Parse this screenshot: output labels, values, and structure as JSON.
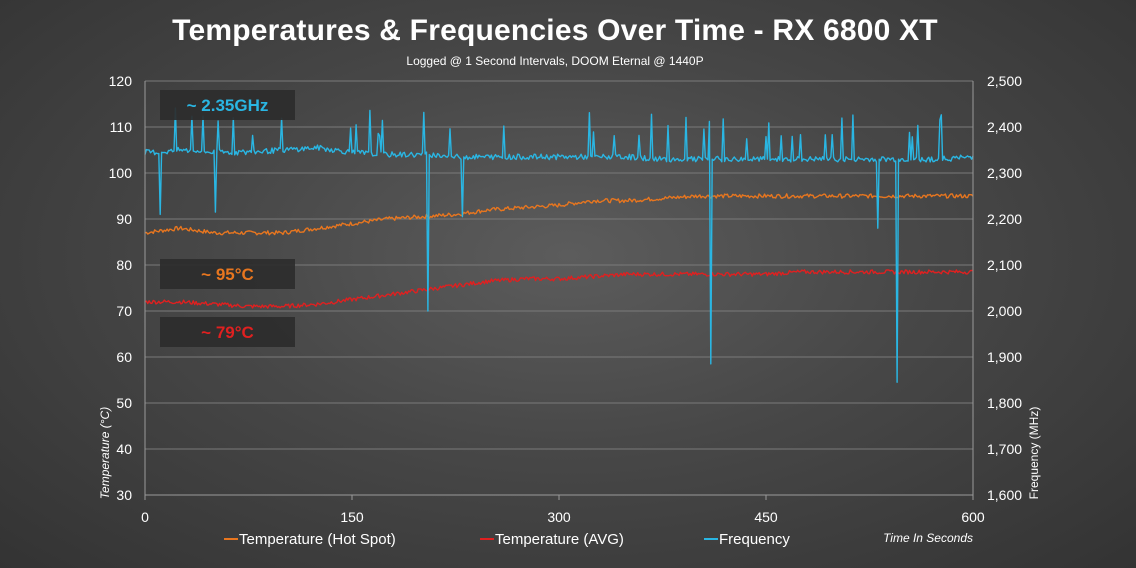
{
  "chart_data": {
    "type": "line",
    "title": "Temperatures & Frequencies Over Time - RX 6800 XT",
    "subtitle": "Logged @ 1 Second Intervals, DOOM Eternal @ 1440P",
    "xlabel": "Time In Seconds",
    "ylabel_left": "Temperature (°C)",
    "ylabel_right": "Frequency  (MHz)",
    "xlim": [
      0,
      600
    ],
    "ylim_left": [
      30,
      120
    ],
    "ylim_right": [
      1600,
      2500
    ],
    "x_ticks": [
      "0",
      "150",
      "300",
      "450",
      "600"
    ],
    "y_left_ticks": [
      "30",
      "40",
      "50",
      "60",
      "70",
      "80",
      "90",
      "100",
      "110",
      "120"
    ],
    "y_right_ticks": [
      "1,600",
      "1,700",
      "1,800",
      "1,900",
      "2,000",
      "2,100",
      "2,200",
      "2,300",
      "2,400",
      "2,500"
    ],
    "grid": true,
    "legend_position": "bottom",
    "series": [
      {
        "name": "Temperature (Hot Spot)",
        "axis": "left",
        "color": "#e8761f",
        "x": [
          0,
          25,
          50,
          75,
          100,
          125,
          150,
          175,
          200,
          225,
          250,
          275,
          300,
          325,
          350,
          375,
          400,
          425,
          450,
          475,
          500,
          525,
          550,
          575,
          600
        ],
        "values": [
          87,
          88,
          87,
          87,
          87,
          88,
          89,
          90,
          90.5,
          91,
          92,
          92.5,
          93,
          94,
          94,
          94.5,
          95,
          95,
          95,
          95,
          95,
          95,
          95,
          95,
          95
        ]
      },
      {
        "name": "Temperature (AVG)",
        "axis": "left",
        "color": "#e02020",
        "x": [
          0,
          25,
          50,
          75,
          100,
          125,
          150,
          175,
          200,
          225,
          250,
          275,
          300,
          325,
          350,
          375,
          400,
          425,
          450,
          475,
          500,
          525,
          550,
          575,
          600
        ],
        "values": [
          72,
          72,
          71.5,
          71,
          71,
          71.5,
          72.5,
          73.5,
          74.5,
          75.5,
          76.5,
          77,
          77,
          77.5,
          78,
          78,
          78,
          78,
          78,
          78.5,
          78.5,
          78.5,
          78.5,
          78.5,
          78.5
        ]
      },
      {
        "name": "Frequency",
        "axis": "right",
        "color": "#2ab6e3",
        "x": [
          0,
          10,
          11,
          12,
          25,
          50,
          51,
          52,
          75,
          100,
          125,
          150,
          175,
          200,
          204,
          205,
          206,
          225,
          229,
          230,
          231,
          250,
          275,
          300,
          325,
          350,
          375,
          400,
          409,
          410,
          411,
          425,
          450,
          475,
          500,
          525,
          530,
          531,
          532,
          543,
          544,
          545,
          546,
          575,
          600
        ],
        "values": [
          2345,
          2345,
          2210,
          2345,
          2350,
          2345,
          2215,
          2345,
          2345,
          2350,
          2355,
          2345,
          2340,
          2340,
          2340,
          2000,
          2340,
          2335,
          2335,
          2205,
          2335,
          2335,
          2335,
          2335,
          2335,
          2335,
          2330,
          2330,
          2330,
          1885,
          2330,
          2330,
          2330,
          2330,
          2330,
          2330,
          2330,
          2180,
          2330,
          2330,
          2330,
          1845,
          2330,
          2330,
          2335
        ]
      }
    ],
    "annotations": [
      {
        "text": "~ 2.35GHz",
        "color": "#2ab6e3"
      },
      {
        "text": "~ 95°C",
        "color": "#e8761f"
      },
      {
        "text": "~ 79°C",
        "color": "#e02020"
      }
    ]
  }
}
